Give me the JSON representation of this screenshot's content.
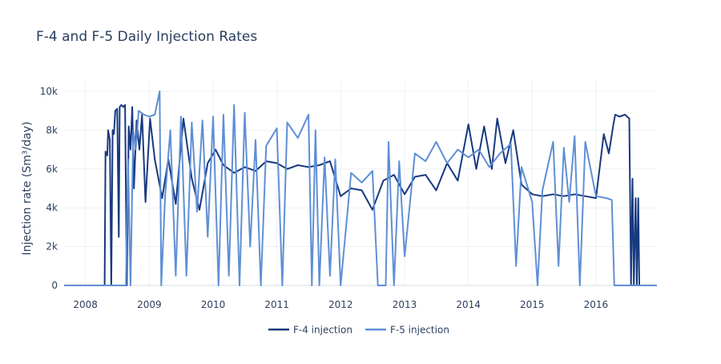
{
  "chart_data": {
    "type": "line",
    "title": "F-4 and F-5 Daily Injection Rates",
    "xlabel": "",
    "ylabel": "Injection rate (Sm³/day)",
    "xlim": [
      "2007-09-01",
      "2016-12-15"
    ],
    "ylim": [
      0,
      10500
    ],
    "x_ticks": [
      "2008",
      "2009",
      "2010",
      "2011",
      "2012",
      "2013",
      "2014",
      "2015",
      "2016"
    ],
    "y_ticks": [
      "0",
      "2k",
      "4k",
      "6k",
      "8k",
      "10k"
    ],
    "y_tick_values": [
      0,
      2000,
      4000,
      6000,
      8000,
      10000
    ],
    "grid": true,
    "legend": "bottom-center",
    "series": [
      {
        "name": "F-4 injection",
        "color": "#17397f",
        "points": [
          [
            "2007-09-01",
            0
          ],
          [
            "2008-04-20",
            0
          ],
          [
            "2008-04-25",
            6900
          ],
          [
            "2008-05-05",
            6700
          ],
          [
            "2008-05-10",
            8000
          ],
          [
            "2008-05-20",
            7500
          ],
          [
            "2008-05-28",
            0
          ],
          [
            "2008-06-05",
            8000
          ],
          [
            "2008-06-12",
            7800
          ],
          [
            "2008-06-20",
            9000
          ],
          [
            "2008-07-01",
            9100
          ],
          [
            "2008-07-10",
            2500
          ],
          [
            "2008-07-15",
            9200
          ],
          [
            "2008-07-25",
            9300
          ],
          [
            "2008-08-05",
            9200
          ],
          [
            "2008-08-15",
            9300
          ],
          [
            "2008-08-25",
            0
          ],
          [
            "2008-09-05",
            8200
          ],
          [
            "2008-09-15",
            7000
          ],
          [
            "2008-09-25",
            9200
          ],
          [
            "2008-10-05",
            5000
          ],
          [
            "2008-10-20",
            8500
          ],
          [
            "2008-11-05",
            7000
          ],
          [
            "2008-11-20",
            8800
          ],
          [
            "2008-12-10",
            4300
          ],
          [
            "2009-01-05",
            8600
          ],
          [
            "2009-02-01",
            6500
          ],
          [
            "2009-03-15",
            4500
          ],
          [
            "2009-04-20",
            6500
          ],
          [
            "2009-06-01",
            4200
          ],
          [
            "2009-07-15",
            8600
          ],
          [
            "2009-09-01",
            5500
          ],
          [
            "2009-10-15",
            3900
          ],
          [
            "2009-12-01",
            6300
          ],
          [
            "2010-01-15",
            7000
          ],
          [
            "2010-03-01",
            6200
          ],
          [
            "2010-05-01",
            5800
          ],
          [
            "2010-07-01",
            6100
          ],
          [
            "2010-09-01",
            5900
          ],
          [
            "2010-11-01",
            6400
          ],
          [
            "2011-01-01",
            6300
          ],
          [
            "2011-03-01",
            6000
          ],
          [
            "2011-05-01",
            6200
          ],
          [
            "2011-07-01",
            6100
          ],
          [
            "2011-09-01",
            6200
          ],
          [
            "2011-11-01",
            6400
          ],
          [
            "2012-01-01",
            4600
          ],
          [
            "2012-03-01",
            5000
          ],
          [
            "2012-05-01",
            4900
          ],
          [
            "2012-07-01",
            3900
          ],
          [
            "2012-09-01",
            5400
          ],
          [
            "2012-11-01",
            5700
          ],
          [
            "2013-01-01",
            4700
          ],
          [
            "2013-03-01",
            5600
          ],
          [
            "2013-05-01",
            5700
          ],
          [
            "2013-07-01",
            4900
          ],
          [
            "2013-09-01",
            6300
          ],
          [
            "2013-11-01",
            5400
          ],
          [
            "2014-01-01",
            8300
          ],
          [
            "2014-02-15",
            6000
          ],
          [
            "2014-04-01",
            8200
          ],
          [
            "2014-05-15",
            6000
          ],
          [
            "2014-06-15",
            8600
          ],
          [
            "2014-08-01",
            6300
          ],
          [
            "2014-09-15",
            8000
          ],
          [
            "2014-11-01",
            5200
          ],
          [
            "2015-01-01",
            4700
          ],
          [
            "2015-03-01",
            4600
          ],
          [
            "2015-05-01",
            4700
          ],
          [
            "2015-07-01",
            4600
          ],
          [
            "2015-09-01",
            4700
          ],
          [
            "2015-11-01",
            4600
          ],
          [
            "2016-01-01",
            4500
          ],
          [
            "2016-02-15",
            7800
          ],
          [
            "2016-03-15",
            6800
          ],
          [
            "2016-04-10",
            8300
          ],
          [
            "2016-04-20",
            8800
          ],
          [
            "2016-05-15",
            8700
          ],
          [
            "2016-06-15",
            8800
          ],
          [
            "2016-07-10",
            8600
          ],
          [
            "2016-07-20",
            0
          ],
          [
            "2016-07-28",
            5500
          ],
          [
            "2016-08-05",
            0
          ],
          [
            "2016-08-15",
            4500
          ],
          [
            "2016-08-22",
            0
          ],
          [
            "2016-08-30",
            4500
          ],
          [
            "2016-09-05",
            0
          ],
          [
            "2016-12-15",
            0
          ]
        ]
      },
      {
        "name": "F-5 injection",
        "color": "#5f8fd5",
        "points": [
          [
            "2007-09-01",
            0
          ],
          [
            "2008-08-20",
            0
          ],
          [
            "2008-09-01",
            6500
          ],
          [
            "2008-09-15",
            0
          ],
          [
            "2008-10-01",
            8000
          ],
          [
            "2008-10-15",
            7000
          ],
          [
            "2008-11-01",
            9000
          ],
          [
            "2008-12-01",
            8800
          ],
          [
            "2009-01-01",
            8700
          ],
          [
            "2009-02-01",
            8800
          ],
          [
            "2009-03-01",
            10000
          ],
          [
            "2009-03-10",
            0
          ],
          [
            "2009-04-01",
            4600
          ],
          [
            "2009-05-01",
            8000
          ],
          [
            "2009-06-01",
            500
          ],
          [
            "2009-07-01",
            8700
          ],
          [
            "2009-08-01",
            500
          ],
          [
            "2009-09-01",
            8400
          ],
          [
            "2009-10-01",
            3800
          ],
          [
            "2009-11-01",
            8500
          ],
          [
            "2009-12-01",
            2500
          ],
          [
            "2010-01-01",
            8700
          ],
          [
            "2010-02-01",
            0
          ],
          [
            "2010-03-01",
            8800
          ],
          [
            "2010-04-01",
            500
          ],
          [
            "2010-05-01",
            9300
          ],
          [
            "2010-06-01",
            0
          ],
          [
            "2010-07-01",
            8900
          ],
          [
            "2010-08-01",
            2000
          ],
          [
            "2010-09-01",
            7500
          ],
          [
            "2010-10-01",
            0
          ],
          [
            "2010-11-01",
            7200
          ],
          [
            "2011-01-01",
            8100
          ],
          [
            "2011-02-01",
            0
          ],
          [
            "2011-03-01",
            8400
          ],
          [
            "2011-05-01",
            7600
          ],
          [
            "2011-07-01",
            8800
          ],
          [
            "2011-07-20",
            0
          ],
          [
            "2011-08-10",
            8000
          ],
          [
            "2011-09-01",
            0
          ],
          [
            "2011-10-01",
            6600
          ],
          [
            "2011-11-01",
            500
          ],
          [
            "2011-12-01",
            6500
          ],
          [
            "2012-01-01",
            0
          ],
          [
            "2012-03-01",
            5800
          ],
          [
            "2012-05-01",
            5300
          ],
          [
            "2012-07-01",
            5900
          ],
          [
            "2012-08-01",
            0
          ],
          [
            "2012-09-15",
            0
          ],
          [
            "2012-10-01",
            7400
          ],
          [
            "2012-11-01",
            0
          ],
          [
            "2012-12-01",
            6400
          ],
          [
            "2013-01-01",
            1500
          ],
          [
            "2013-03-01",
            6800
          ],
          [
            "2013-05-01",
            6400
          ],
          [
            "2013-07-01",
            7400
          ],
          [
            "2013-09-01",
            6300
          ],
          [
            "2013-11-01",
            7000
          ],
          [
            "2014-01-01",
            6600
          ],
          [
            "2014-03-01",
            7000
          ],
          [
            "2014-05-01",
            6100
          ],
          [
            "2014-07-01",
            6800
          ],
          [
            "2014-09-01",
            7300
          ],
          [
            "2014-10-01",
            1000
          ],
          [
            "2014-11-01",
            6100
          ],
          [
            "2015-01-01",
            4300
          ],
          [
            "2015-02-01",
            0
          ],
          [
            "2015-03-01",
            4900
          ],
          [
            "2015-05-01",
            7400
          ],
          [
            "2015-06-01",
            1000
          ],
          [
            "2015-07-01",
            7100
          ],
          [
            "2015-08-01",
            4300
          ],
          [
            "2015-09-01",
            7700
          ],
          [
            "2015-10-01",
            0
          ],
          [
            "2015-11-01",
            7400
          ],
          [
            "2016-01-01",
            4600
          ],
          [
            "2016-03-01",
            4500
          ],
          [
            "2016-04-01",
            4400
          ],
          [
            "2016-04-15",
            0
          ],
          [
            "2016-12-15",
            0
          ]
        ]
      }
    ]
  }
}
